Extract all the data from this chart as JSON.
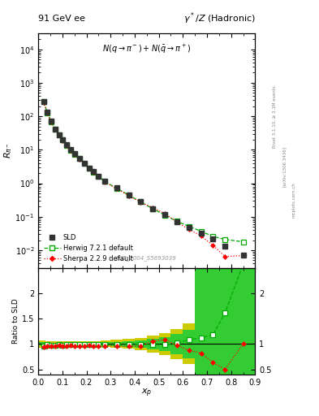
{
  "title_left": "91 GeV ee",
  "title_right": "γ*/Z (Hadronic)",
  "plot_label": "N(q → π⁻)+N(̅q → π⁺)",
  "watermark": "SLD_2004_S5693039",
  "sld_x": [
    0.022,
    0.038,
    0.054,
    0.07,
    0.086,
    0.102,
    0.118,
    0.134,
    0.15,
    0.17,
    0.19,
    0.21,
    0.23,
    0.25,
    0.275,
    0.325,
    0.375,
    0.425,
    0.475,
    0.525,
    0.575,
    0.625,
    0.675,
    0.725,
    0.775,
    0.85
  ],
  "sld_y": [
    280,
    130,
    70,
    42,
    28,
    20,
    14,
    10,
    7.5,
    5.5,
    4.0,
    2.9,
    2.2,
    1.65,
    1.15,
    0.72,
    0.45,
    0.28,
    0.175,
    0.115,
    0.072,
    0.048,
    0.033,
    0.022,
    0.013,
    0.007
  ],
  "sld_yerr": [
    8,
    4,
    2.5,
    1.5,
    1.0,
    0.7,
    0.5,
    0.38,
    0.28,
    0.2,
    0.14,
    0.1,
    0.08,
    0.06,
    0.04,
    0.025,
    0.016,
    0.01,
    0.007,
    0.005,
    0.003,
    0.002,
    0.0015,
    0.001,
    0.0007,
    0.0005
  ],
  "herwig_x": [
    0.022,
    0.038,
    0.054,
    0.07,
    0.086,
    0.102,
    0.118,
    0.134,
    0.15,
    0.17,
    0.19,
    0.21,
    0.23,
    0.25,
    0.275,
    0.325,
    0.375,
    0.425,
    0.475,
    0.525,
    0.575,
    0.625,
    0.675,
    0.725,
    0.775,
    0.85
  ],
  "herwig_y": [
    270,
    128,
    68,
    41,
    27.5,
    19.5,
    13.8,
    9.9,
    7.4,
    5.4,
    3.95,
    2.85,
    2.18,
    1.62,
    1.13,
    0.71,
    0.445,
    0.278,
    0.173,
    0.113,
    0.073,
    0.052,
    0.037,
    0.026,
    0.021,
    0.018
  ],
  "sherpa_x": [
    0.022,
    0.038,
    0.054,
    0.07,
    0.086,
    0.102,
    0.118,
    0.134,
    0.15,
    0.17,
    0.19,
    0.21,
    0.23,
    0.25,
    0.275,
    0.325,
    0.375,
    0.425,
    0.475,
    0.525,
    0.575,
    0.625,
    0.675,
    0.725,
    0.775,
    0.85
  ],
  "sherpa_y": [
    265,
    124,
    67,
    40.5,
    27.2,
    19.2,
    13.5,
    9.7,
    7.2,
    5.3,
    3.85,
    2.8,
    2.1,
    1.58,
    1.1,
    0.69,
    0.43,
    0.27,
    0.185,
    0.125,
    0.07,
    0.042,
    0.027,
    0.014,
    0.0065,
    0.007
  ],
  "ratio_herwig": [
    0.964,
    0.985,
    0.971,
    0.976,
    0.982,
    0.975,
    0.986,
    0.99,
    0.987,
    0.982,
    0.988,
    0.983,
    0.991,
    0.982,
    0.983,
    0.986,
    0.989,
    0.993,
    0.989,
    0.983,
    1.014,
    1.083,
    1.121,
    1.182,
    1.615,
    2.57
  ],
  "ratio_sherpa": [
    0.946,
    0.954,
    0.957,
    0.964,
    0.971,
    0.96,
    0.964,
    0.97,
    0.96,
    0.964,
    0.963,
    0.966,
    0.955,
    0.958,
    0.957,
    0.958,
    0.956,
    0.964,
    1.057,
    1.087,
    0.972,
    0.875,
    0.818,
    0.636,
    0.5,
    1.0
  ],
  "sld_color": "#333333",
  "herwig_color": "#00aa00",
  "sherpa_color": "#ff0000",
  "band_green_color": "#33cc33",
  "band_yellow_color": "#cccc00",
  "xlim": [
    0.0,
    0.9
  ],
  "ylim_main_lo": 0.003,
  "ylim_main_hi": 30000,
  "ylim_ratio_lo": 0.4,
  "ylim_ratio_hi": 2.5
}
